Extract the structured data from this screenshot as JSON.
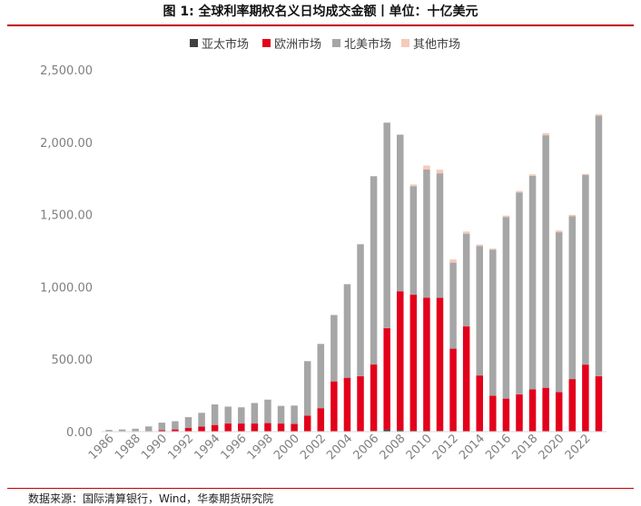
{
  "title": "图 1: 全球利率期权名义日均成交金额丨单位：十亿美元",
  "source": "数据来源：国际清算银行，Wind，华泰期货研究院",
  "colors": {
    "asia": "#404040",
    "europe": "#e3001b",
    "north_america": "#a6a6a6",
    "other": "#f6c9bb",
    "axis": "#d9d9d9",
    "rule": "#c00000"
  },
  "chart_data": {
    "type": "bar",
    "stacked": true,
    "title": "",
    "xlabel": "",
    "ylabel": "",
    "ylim": [
      0,
      2500
    ],
    "y_ticks": [
      "0.00",
      "500.00",
      "1,000.00",
      "1,500.00",
      "2,000.00",
      "2,500.00"
    ],
    "y_tick_values": [
      0,
      500,
      1000,
      1500,
      2000,
      2500
    ],
    "x_tick_labels": [
      "1986",
      "1988",
      "1990",
      "1992",
      "1994",
      "1996",
      "1998",
      "2000",
      "2002",
      "2004",
      "2006",
      "2008",
      "2010",
      "2012",
      "2014",
      "2016",
      "2018",
      "2020",
      "2022"
    ],
    "grid": false,
    "legend_position": "top",
    "categories": [
      "1986",
      "1987",
      "1988",
      "1989",
      "1990",
      "1991",
      "1992",
      "1993",
      "1994",
      "1995",
      "1996",
      "1997",
      "1998",
      "1999",
      "2000",
      "2001",
      "2002",
      "2003",
      "2004",
      "2005",
      "2006",
      "2007",
      "2008",
      "2009",
      "2010",
      "2011",
      "2012",
      "2013",
      "2014",
      "2015",
      "2016",
      "2017",
      "2018",
      "2019",
      "2020",
      "2021",
      "2022",
      "2023"
    ],
    "series": [
      {
        "name": "亚太市场",
        "values": [
          0,
          0,
          0,
          0,
          0,
          0,
          0,
          0,
          1,
          1,
          1,
          1,
          1,
          1,
          1,
          1,
          2,
          2,
          2,
          3,
          5,
          15,
          10,
          6,
          6,
          5,
          3,
          3,
          3,
          3,
          3,
          3,
          3,
          3,
          3,
          3,
          3,
          3
        ]
      },
      {
        "name": "欧洲市场",
        "values": [
          0,
          0,
          0,
          3,
          10,
          15,
          25,
          35,
          45,
          55,
          55,
          55,
          58,
          55,
          52,
          110,
          160,
          345,
          370,
          380,
          460,
          700,
          960,
          940,
          920,
          920,
          570,
          725,
          385,
          245,
          225,
          255,
          290,
          300,
          270,
          360,
          460,
          380
        ]
      },
      {
        "name": "北美市场",
        "values": [
          12,
          15,
          20,
          33,
          52,
          57,
          75,
          95,
          142,
          117,
          112,
          142,
          162,
          122,
          127,
          376,
          444,
          459,
          647,
          912,
          1300,
          1420,
          1082,
          750,
          885,
          860,
          595,
          640,
          895,
          1010,
          1255,
          1395,
          1475,
          1745,
          1105,
          1125,
          1310,
          1800
        ]
      },
      {
        "name": "其他市场",
        "values": [
          0,
          0,
          0,
          0,
          0,
          0,
          0,
          0,
          0,
          0,
          0,
          0,
          0,
          0,
          0,
          0,
          0,
          0,
          0,
          0,
          0,
          0,
          0,
          12,
          28,
          25,
          22,
          15,
          10,
          7,
          10,
          10,
          10,
          15,
          12,
          10,
          8,
          10
        ]
      }
    ]
  }
}
